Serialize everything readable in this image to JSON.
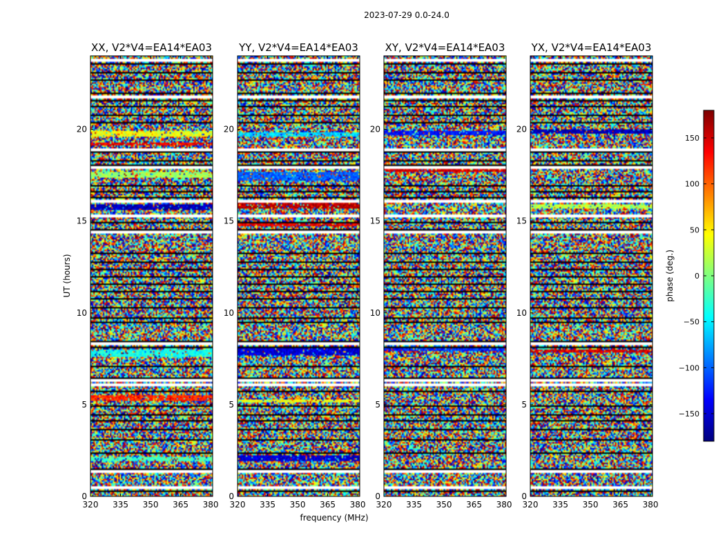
{
  "chart_data": {
    "type": "heatmap",
    "suptitle": "2023-07-29 0.0-24.0",
    "xlabel": "frequency (MHz)",
    "ylabel": "UT (hours)",
    "xlim": [
      320,
      381
    ],
    "ylim": [
      0,
      24
    ],
    "xticks": [
      320,
      335,
      350,
      365,
      380
    ],
    "xtick_labels": [
      "320",
      "335",
      "350",
      "365",
      "380"
    ],
    "yticks": [
      0,
      5,
      10,
      15,
      20
    ],
    "ytick_labels": [
      "0",
      "5",
      "10",
      "15",
      "20"
    ],
    "panels": [
      {
        "title": "XX, V2*V4=EA14*EA03",
        "coherent_bands": [
          {
            "ut": [
              1.9,
              2.15
            ],
            "phase": -20
          },
          {
            "ut": [
              5.2,
              5.5
            ],
            "phase": 120
          },
          {
            "ut": [
              7.6,
              8.0
            ],
            "phase": -40
          },
          {
            "ut": [
              15.6,
              15.9
            ],
            "phase": -160
          },
          {
            "ut": [
              17.4,
              17.7
            ],
            "phase": 10
          },
          {
            "ut": [
              19.1,
              19.3
            ],
            "phase": 140
          },
          {
            "ut": [
              19.6,
              19.9
            ],
            "phase": 40
          }
        ]
      },
      {
        "title": "YY, V2*V4=EA14*EA03",
        "coherent_bands": [
          {
            "ut": [
              1.9,
              2.2
            ],
            "phase": -150
          },
          {
            "ut": [
              5.1,
              5.3
            ],
            "phase": 40
          },
          {
            "ut": [
              7.7,
              8.1
            ],
            "phase": -150
          },
          {
            "ut": [
              14.7,
              14.9
            ],
            "phase": 140
          },
          {
            "ut": [
              15.7,
              16.0
            ],
            "phase": 160
          },
          {
            "ut": [
              17.2,
              17.7
            ],
            "phase": -100
          },
          {
            "ut": [
              19.6,
              19.8
            ],
            "phase": -60
          }
        ]
      },
      {
        "title": "XY, V2*V4=EA14*EA03",
        "coherent_bands": [
          {
            "ut": [
              7.9,
              8.1
            ],
            "phase": -120
          },
          {
            "ut": [
              17.7,
              17.9
            ],
            "phase": 150
          },
          {
            "ut": [
              19.7,
              19.9
            ],
            "phase": -130
          }
        ]
      },
      {
        "title": "YX, V2*V4=EA14*EA03",
        "coherent_bands": [
          {
            "ut": [
              7.8,
              8.0
            ],
            "phase": 150
          },
          {
            "ut": [
              15.7,
              15.9
            ],
            "phase": 20
          },
          {
            "ut": [
              19.8,
              20.0
            ],
            "phase": -160
          }
        ]
      }
    ],
    "flagged_rows_ut": [
      0.3,
      1.55,
      2.4,
      3.1,
      3.7,
      4.15,
      4.5,
      5.0,
      5.8,
      6.3,
      6.45,
      7.1,
      8.2,
      8.5,
      9.55,
      9.8,
      10.3,
      10.8,
      11.2,
      11.6,
      12.0,
      12.4,
      12.8,
      13.3,
      14.6,
      15.0,
      15.3,
      16.3,
      16.6,
      17.0,
      18.1,
      18.3,
      18.8,
      19.0,
      20.4,
      20.8,
      21.3,
      21.6,
      22.0,
      22.7,
      23.1,
      23.6
    ],
    "blank_rows_ut": [
      0.55,
      1.45,
      6.15,
      6.4,
      8.4,
      14.45,
      15.35,
      16.2,
      18.0,
      19.0,
      21.85,
      23.8
    ],
    "colorbar": {
      "label": "phase (deg.)",
      "range": [
        -180,
        180
      ],
      "ticks": [
        -150,
        -100,
        -50,
        0,
        50,
        100,
        150
      ],
      "tick_labels": [
        "−150",
        "−100",
        "−50",
        "0",
        "50",
        "100",
        "150"
      ]
    }
  }
}
